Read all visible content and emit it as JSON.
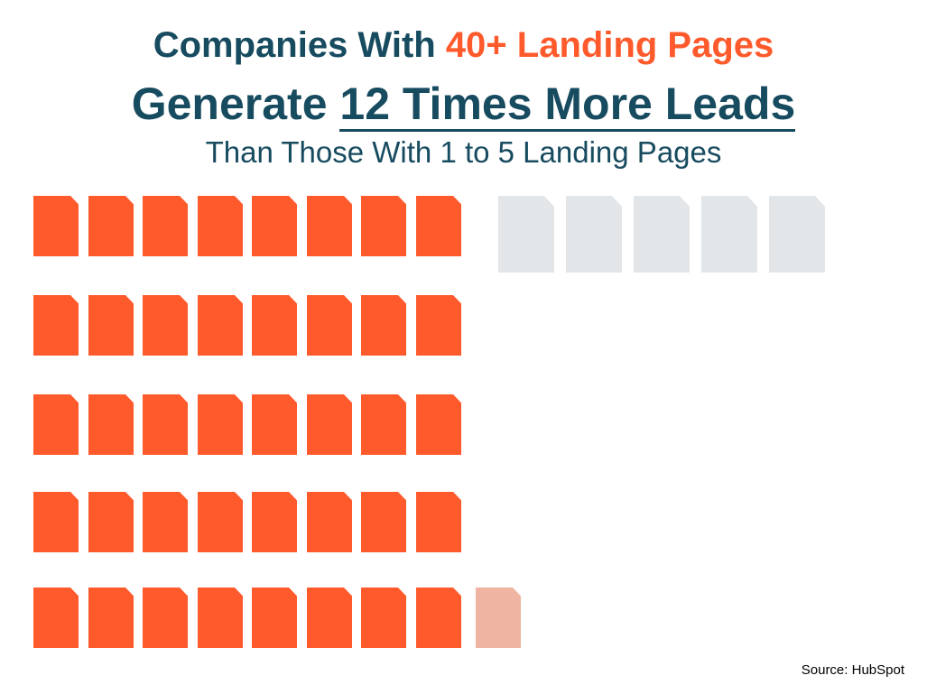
{
  "title": {
    "line1_prefix": "Companies With ",
    "line1_accent": "40+ Landing Pages",
    "line2_prefix": "Generate ",
    "line2_underlined": "12 Times More Leads",
    "line3": "Than Those With 1 to 5 Landing Pages"
  },
  "pictogram": {
    "group_40_plus": {
      "full_pages": 40,
      "partial_pages": 1,
      "partial_fill": 0.4,
      "color": "#ff5a2c",
      "partial_color": "#f0b4a3"
    },
    "group_1_to_5": {
      "pages": 5,
      "color": "#e2e6e9"
    },
    "icon": "document-page-icon"
  },
  "source": "Source: HubSpot"
}
